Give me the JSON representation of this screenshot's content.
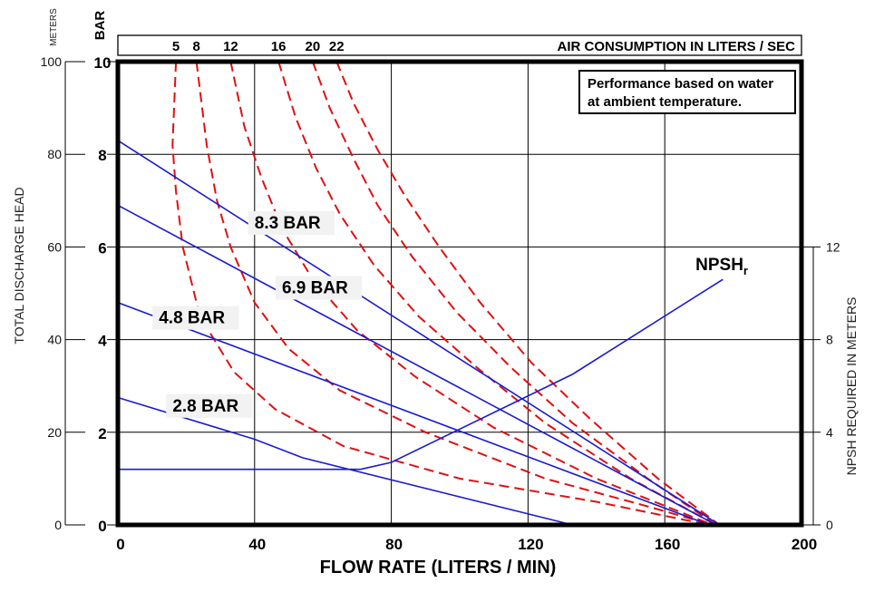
{
  "chart_data": {
    "type": "line",
    "xlabel": "FLOW RATE (LITERS / MIN)",
    "xlim": [
      0,
      200
    ],
    "x_ticks": [
      "0",
      "40",
      "80",
      "120",
      "160",
      "200"
    ],
    "ylabel_left_meters": "TOTAL DISCHARGE HEAD",
    "y_unit_meters": "METERS",
    "ylim_meters": [
      0,
      100
    ],
    "y_ticks_meters": [
      "0",
      "20",
      "40",
      "60",
      "80",
      "100"
    ],
    "y_unit_bar": "BAR",
    "ylim_bar": [
      0,
      10
    ],
    "y_ticks_bar": [
      "0",
      "2",
      "4",
      "6",
      "8",
      "10"
    ],
    "ylabel_right": "NPSH REQUIRED IN METERS",
    "ylim_right": [
      0,
      20
    ],
    "y_ticks_right": [
      "0",
      "4",
      "8",
      "12"
    ],
    "air_axis_title": "AIR CONSUMPTION IN LITERS / SEC",
    "air_ticks": [
      {
        "label": "5",
        "flow": 17
      },
      {
        "label": "8",
        "flow": 23
      },
      {
        "label": "12",
        "flow": 33
      },
      {
        "label": "16",
        "flow": 47
      },
      {
        "label": "20",
        "flow": 57
      },
      {
        "label": "22",
        "flow": 64
      }
    ],
    "note_line1": "Performance based on water",
    "note_line2": "at ambient temperature.",
    "grid": true,
    "series": [
      {
        "name": "8.3 BAR",
        "label": "8.3 BAR",
        "color": "#1a1ad6",
        "label_at": [
          40,
          64
        ],
        "points": [
          [
            0,
            83
          ],
          [
            176,
            0
          ]
        ]
      },
      {
        "name": "6.9 BAR",
        "label": "6.9 BAR",
        "color": "#1a1ad6",
        "label_at": [
          48,
          50
        ],
        "points": [
          [
            0,
            69
          ],
          [
            175,
            0
          ]
        ]
      },
      {
        "name": "4.8 BAR",
        "label": "4.8 BAR",
        "color": "#1a1ad6",
        "label_at": [
          12,
          43.5
        ],
        "points": [
          [
            0,
            48
          ],
          [
            173,
            0
          ]
        ]
      },
      {
        "name": "2.8 BAR",
        "label": "2.8 BAR",
        "color": "#1a1ad6",
        "label_at": [
          16,
          24.5
        ],
        "points": [
          [
            0,
            27.5
          ],
          [
            40,
            18.5
          ],
          [
            54,
            14.5
          ],
          [
            133,
            0
          ]
        ]
      },
      {
        "name": "NPSHr",
        "label": "NPSH",
        "label_sub": "r",
        "color": "#1a1ad6",
        "label_at": [
          169,
          55
        ],
        "axis": "right",
        "points": [
          [
            0,
            2.4
          ],
          [
            71,
            2.4
          ],
          [
            80,
            2.7
          ],
          [
            133,
            6.5
          ],
          [
            177,
            10.6
          ]
        ]
      }
    ],
    "air_curves": [
      {
        "name": "5",
        "color": "#e01010",
        "dashed": true,
        "points": [
          [
            17,
            100
          ],
          [
            16,
            82
          ],
          [
            17,
            72
          ],
          [
            19,
            60
          ],
          [
            24,
            45
          ],
          [
            34,
            33
          ],
          [
            46,
            25
          ],
          [
            66,
            17
          ],
          [
            100,
            10
          ],
          [
            140,
            5
          ],
          [
            173,
            0
          ]
        ]
      },
      {
        "name": "8",
        "color": "#e01010",
        "dashed": true,
        "points": [
          [
            23,
            100
          ],
          [
            26,
            82
          ],
          [
            29,
            70
          ],
          [
            33,
            60
          ],
          [
            40,
            48
          ],
          [
            50,
            38
          ],
          [
            65,
            29
          ],
          [
            90,
            20
          ],
          [
            125,
            10
          ],
          [
            155,
            4
          ],
          [
            174,
            0
          ]
        ]
      },
      {
        "name": "12",
        "color": "#e01010",
        "dashed": true,
        "points": [
          [
            33,
            100
          ],
          [
            37,
            86
          ],
          [
            42,
            75
          ],
          [
            48,
            64
          ],
          [
            57,
            53
          ],
          [
            70,
            42
          ],
          [
            87,
            32
          ],
          [
            110,
            21
          ],
          [
            140,
            10
          ],
          [
            174,
            0
          ]
        ]
      },
      {
        "name": "16",
        "color": "#e01010",
        "dashed": true,
        "points": [
          [
            47,
            100
          ],
          [
            52,
            88
          ],
          [
            58,
            77
          ],
          [
            65,
            67
          ],
          [
            75,
            56
          ],
          [
            88,
            45
          ],
          [
            105,
            34
          ],
          [
            125,
            22
          ],
          [
            150,
            10
          ],
          [
            175,
            0
          ]
        ]
      },
      {
        "name": "20",
        "color": "#e01010",
        "dashed": true,
        "points": [
          [
            57,
            100
          ],
          [
            62,
            90
          ],
          [
            69,
            79
          ],
          [
            76,
            69
          ],
          [
            86,
            58
          ],
          [
            99,
            46
          ],
          [
            115,
            34
          ],
          [
            133,
            22
          ],
          [
            155,
            10
          ],
          [
            175,
            0
          ]
        ]
      },
      {
        "name": "22",
        "color": "#e01010",
        "dashed": true,
        "points": [
          [
            64,
            100
          ],
          [
            69,
            91
          ],
          [
            76,
            81
          ],
          [
            84,
            71
          ],
          [
            94,
            60
          ],
          [
            106,
            48
          ],
          [
            121,
            35
          ],
          [
            138,
            23
          ],
          [
            158,
            10
          ],
          [
            176,
            0
          ]
        ]
      }
    ]
  }
}
